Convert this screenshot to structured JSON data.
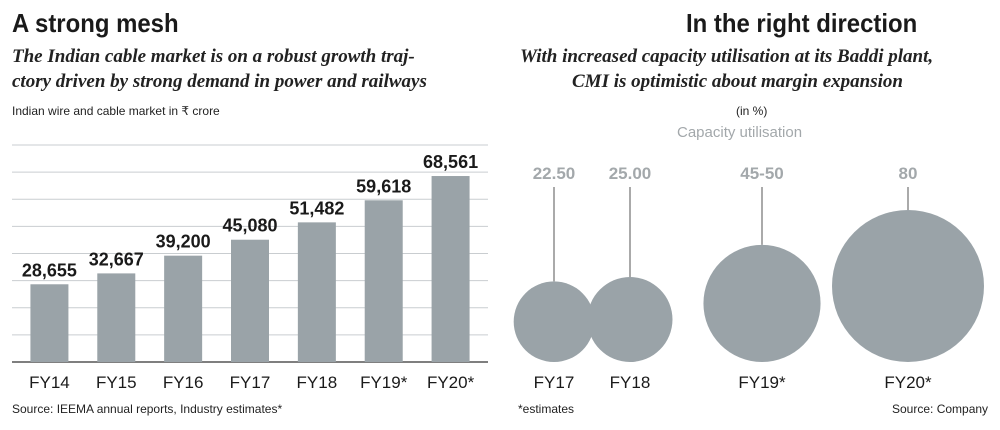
{
  "left": {
    "title": "A strong mesh",
    "subtitle_line1": "The Indian cable market is on a robust growth traj-",
    "subtitle_line2": "ctory driven by strong demand in power and railways",
    "unit_note": "Indian wire and cable market in ₹ crore",
    "source": "Source: IEEMA annual reports, Industry estimates*"
  },
  "right": {
    "title": "In the right direction",
    "subtitle_line1": "With increased capacity utilisation at its Baddi plant,",
    "subtitle_line2": "CMI is optimistic about margin expansion",
    "unit_note": "(in %)",
    "chart_label": "Capacity utilisation",
    "footnote": "*estimates",
    "source": "Source: Company"
  },
  "colors": {
    "bar": "#9aa3a8",
    "bubble": "#9aa3a8",
    "grid": "#c9cdd0",
    "bubble_label": "#a3a8ab",
    "text": "#1a1a1a"
  },
  "chart_data": [
    {
      "type": "bar",
      "categories": [
        "FY14",
        "FY15",
        "FY16",
        "FY17",
        "FY18",
        "FY19*",
        "FY20*"
      ],
      "values": [
        28655,
        32667,
        39200,
        45080,
        51482,
        59618,
        68561
      ],
      "value_labels": [
        "28,655",
        "32,667",
        "39,200",
        "45,080",
        "51,482",
        "59,618",
        "68,561"
      ],
      "ylim": [
        0,
        80000
      ],
      "grid": true
    },
    {
      "type": "bubble",
      "categories": [
        "FY17",
        "FY18",
        "FY19*",
        "FY20*"
      ],
      "values": [
        22.5,
        25.0,
        47.5,
        80
      ],
      "value_labels": [
        "22.50",
        "25.00",
        "45-50",
        "80"
      ]
    }
  ]
}
